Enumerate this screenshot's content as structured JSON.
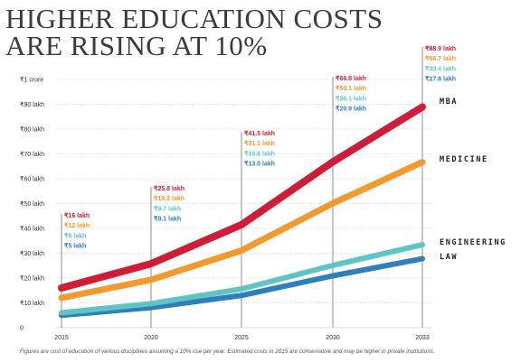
{
  "title_lines": [
    "HIGHER EDUCATION COSTS",
    "ARE RISING AT 10%"
  ],
  "footnote": "Figures are cost of education of various disciplines assuming a 10% rise per year. Estimated costs in 2015 are conservative and may be higher in private institutions.",
  "colors": {
    "mba": "#d01c36",
    "medicine": "#f39a2e",
    "engineering": "#5ec5c4",
    "law": "#2f7fbd",
    "grid": "#bdbdbd",
    "axis_text": "#333333"
  },
  "chart_data": {
    "type": "line",
    "title": "HIGHER EDUCATION COSTS ARE RISING AT 10%",
    "x": [
      2015,
      2020,
      2025,
      2030,
      2033
    ],
    "x_tick_labels": [
      "2015",
      "2020",
      "2025",
      "2030",
      "2033"
    ],
    "ylim": [
      0,
      100
    ],
    "y_unit": "lakh",
    "y_ticks": [
      0,
      10,
      20,
      30,
      40,
      50,
      60,
      70,
      80,
      90,
      100
    ],
    "y_tick_labels": [
      "0",
      "₹10 lakh",
      "₹20 lakh",
      "₹30 lakh",
      "₹40 lakh",
      "₹50 lakh",
      "₹60 lakh",
      "₹70 lakh",
      "₹80 lakh",
      "₹90 lakh",
      "₹1 crore"
    ],
    "grid": true,
    "series": [
      {
        "key": "mba",
        "name": "MBA",
        "values": [
          16,
          25.8,
          41.5,
          66.8,
          88.9
        ],
        "labels": [
          "₹16 lakh",
          "₹25.8 lakh",
          "₹41.5 lakh",
          "₹66.8 lakh",
          "₹88.9 lakh"
        ]
      },
      {
        "key": "medicine",
        "name": "MEDICINE",
        "values": [
          12,
          19.3,
          31.1,
          50.1,
          66.7
        ],
        "labels": [
          "₹12 lakh",
          "₹19.3 lakh",
          "₹31.1 lakh",
          "₹50.1 lakh",
          "₹66.7 lakh"
        ]
      },
      {
        "key": "engineering",
        "name": "ENGINEERING",
        "values": [
          6,
          9.7,
          15.6,
          25.1,
          33.4
        ],
        "labels": [
          "₹6 lakh",
          "₹9.7 lakh",
          "₹15.6 lakh",
          "₹25.1 lakh",
          "₹33.4 lakh"
        ]
      },
      {
        "key": "law",
        "name": "LAW",
        "values": [
          5,
          8.1,
          13.0,
          20.9,
          27.8
        ],
        "labels": [
          "₹5 lakh",
          "₹8.1 lakh",
          "₹13.0 lakh",
          "₹20.9 lakh",
          "₹27.8 lakh"
        ]
      }
    ]
  }
}
